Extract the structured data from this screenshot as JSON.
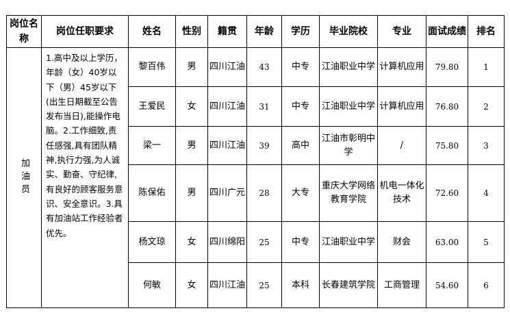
{
  "headers": [
    "岗位名称",
    "岗位任职要求",
    "姓名",
    "性别",
    "籍贯",
    "年龄",
    "学历",
    "毕业院校",
    "专业",
    "面试成绩",
    "排名"
  ],
  "position": "加油员",
  "requirements": "1.高中及以上学历，年龄（女）40岁以下（男）45岁以下(出生日期截至公告发布当日),能操作电脑。2.工作细致,责任感强,具有团队精神,执行力强,为人诚实、勤奋、守纪律,有良好的顾客服务意识、安全意识。3.具有加油站工作经验者优先。",
  "rows": [
    {
      "name": "黎百伟",
      "gender": "男",
      "origin": "四川江油",
      "age": "43",
      "education": "中专",
      "school": "江油职业中学",
      "major": "计算机应用",
      "score": "79.80",
      "rank": "1"
    },
    {
      "name": "王爱民",
      "gender": "女",
      "origin": "四川江油",
      "age": "31",
      "education": "中专",
      "school": "江油职业中学",
      "major": "计算机应用",
      "score": "76.80",
      "rank": "2"
    },
    {
      "name": "梁一",
      "gender": "男",
      "origin": "四川江油",
      "age": "39",
      "education": "高中",
      "school": "江油市彰明中学",
      "major": "/",
      "score": "75.80",
      "rank": "3"
    },
    {
      "name": "陈保佑",
      "gender": "男",
      "origin": "四川广元",
      "age": "28",
      "education": "大专",
      "school": "重庆大学网络教育学院",
      "major": "机电一体化技术",
      "score": "72.60",
      "rank": "4"
    },
    {
      "name": "杨文琼",
      "gender": "女",
      "origin": "四川绵阳",
      "age": "25",
      "education": "中专",
      "school": "江油职业中学",
      "major": "财会",
      "score": "63.00",
      "rank": "5"
    },
    {
      "name": "何敏",
      "gender": "女",
      "origin": "四川江油",
      "age": "25",
      "education": "本科",
      "school": "长春建筑学院",
      "major": "工商管理",
      "score": "54.60",
      "rank": "6"
    }
  ]
}
